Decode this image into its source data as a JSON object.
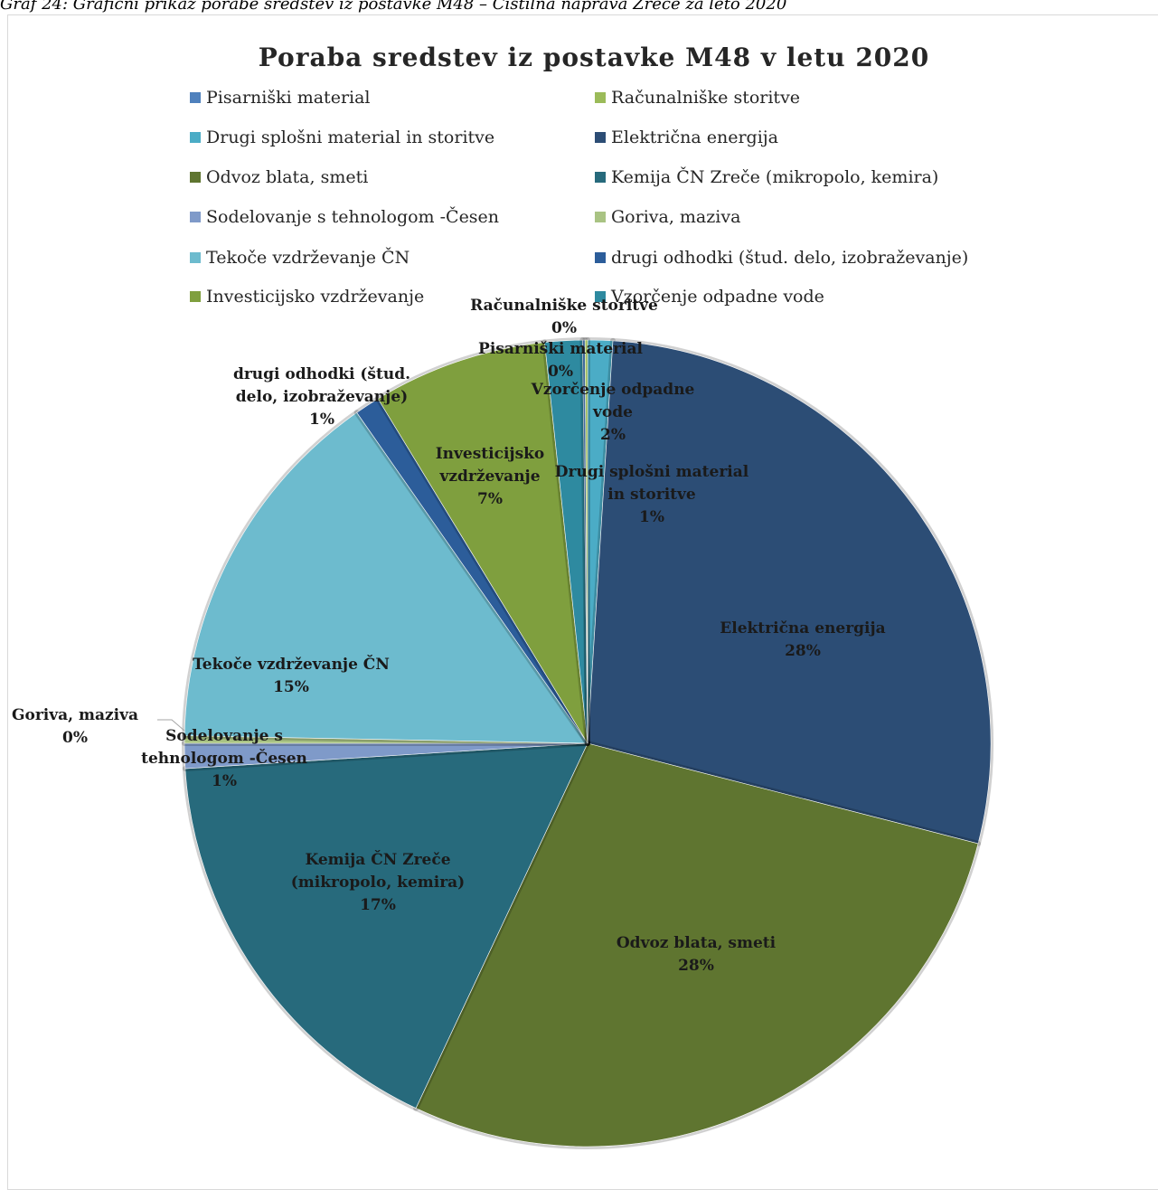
{
  "caption": "Graf 24: Grafični prikaz porabe sredstev iz postavke M48 – Čistilna naprava Zreče za leto 2020",
  "chart_data": {
    "type": "pie",
    "title": "Poraba sredstev iz postavke M48 v letu 2020",
    "legend_position": "top",
    "slices": [
      {
        "name": "Pisarniški material",
        "value": 0.1,
        "percent_label": "0%",
        "color": "#4f81bd"
      },
      {
        "name": "Računalniške storitve",
        "value": 0.1,
        "percent_label": "0%",
        "color": "#9bbb59"
      },
      {
        "name": "Drugi splošni material in storitve",
        "value": 1.0,
        "percent_label": "1%",
        "color": "#4bacc6"
      },
      {
        "name": "Električna energija",
        "value": 28.0,
        "percent_label": "28%",
        "color": "#2c4d75"
      },
      {
        "name": "Odvoz blata, smeti",
        "value": 28.0,
        "percent_label": "28%",
        "color": "#5f7530"
      },
      {
        "name": "Kemija ČN Zreče (mikropolo, kemira)",
        "value": 17.0,
        "percent_label": "17%",
        "color": "#276a7c"
      },
      {
        "name": "Sodelovanje s tehnologom -Česen",
        "value": 1.0,
        "percent_label": "1%",
        "color": "#7f9ac9"
      },
      {
        "name": "Goriva, maziva",
        "value": 0.3,
        "percent_label": "0%",
        "color": "#a9c383"
      },
      {
        "name": "Tekoče vzdrževanje ČN",
        "value": 15.0,
        "percent_label": "15%",
        "color": "#6dbbce"
      },
      {
        "name": "drugi odhodki (štud. delo, izobraževanje)",
        "value": 1.0,
        "percent_label": "1%",
        "color": "#2c5d9a"
      },
      {
        "name": "Investicijsko vzdrževanje",
        "value": 7.0,
        "percent_label": "7%",
        "color": "#7f9f3e"
      },
      {
        "name": "Vzorčenje odpadne vode",
        "value": 1.5,
        "percent_label": "2%",
        "color": "#2e8aa0"
      }
    ],
    "data_labels": [
      {
        "lines": [
          "Računalniške storitve",
          "0%"
        ]
      },
      {
        "lines": [
          "Pisarniški material",
          "0%"
        ]
      },
      {
        "lines": [
          "Vzorčenje odpadne",
          "vode",
          "2%"
        ]
      },
      {
        "lines": [
          "drugi odhodki (štud.",
          "delo, izobraževanje)",
          "1%"
        ]
      },
      {
        "lines": [
          "Investicijsko",
          "vzdrževanje",
          "7%"
        ]
      },
      {
        "lines": [
          "Drugi splošni material",
          "in storitve",
          "1%"
        ]
      },
      {
        "lines": [
          "Električna energija",
          "28%"
        ]
      },
      {
        "lines": [
          "Tekoče vzdrževanje ČN",
          "15%"
        ]
      },
      {
        "lines": [
          "Goriva, maziva",
          "0%"
        ]
      },
      {
        "lines": [
          "Sodelovanje s",
          "tehnologom -Česen",
          "1%"
        ]
      },
      {
        "lines": [
          "Kemija ČN Zreče",
          "(mikropolo, kemira)",
          "17%"
        ]
      },
      {
        "lines": [
          "Odvoz blata, smeti",
          "28%"
        ]
      }
    ]
  }
}
